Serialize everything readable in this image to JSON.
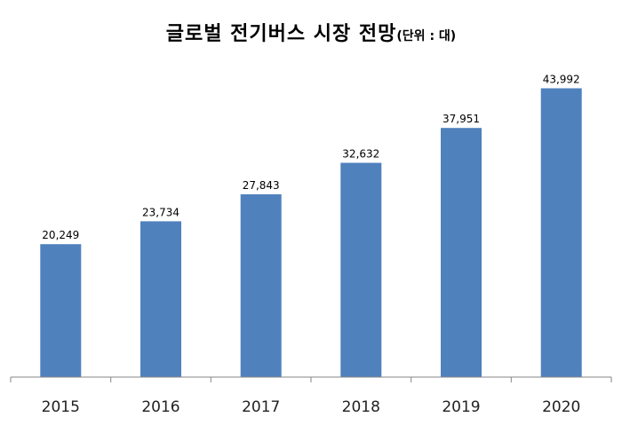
{
  "chart_data": {
    "type": "bar",
    "title": "글로벌 전기버스 시장 전망",
    "subtitle": "(단위 : 대)",
    "categories": [
      "2015",
      "2016",
      "2017",
      "2018",
      "2019",
      "2020"
    ],
    "values": [
      20249,
      23734,
      27843,
      32632,
      37951,
      43992
    ],
    "value_labels": [
      "20,249",
      "23,734",
      "27,843",
      "32,632",
      "37,951",
      "43,992"
    ],
    "ylim": [
      0,
      50000
    ],
    "grid": false,
    "bar_color": "#4F81BD",
    "axis_color": "#868686"
  }
}
